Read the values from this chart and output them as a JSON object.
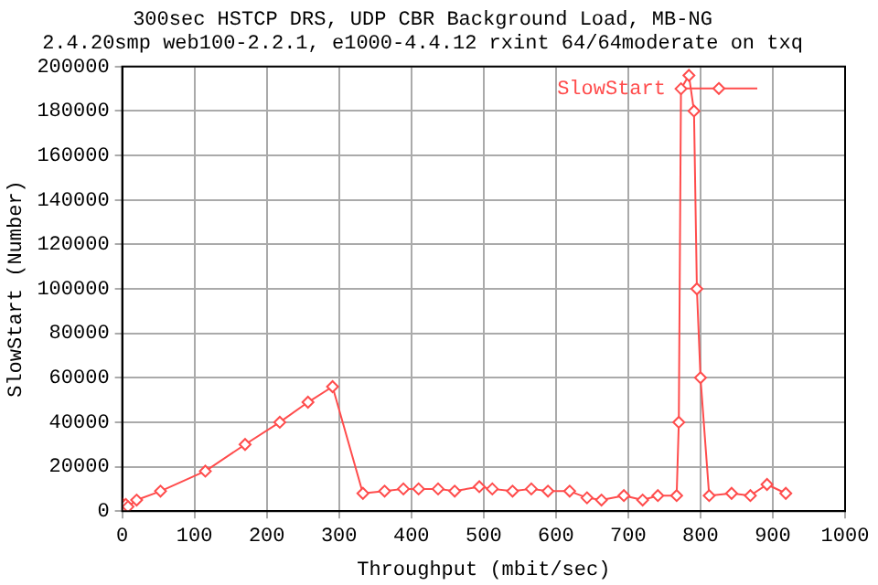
{
  "chart_data": {
    "type": "line",
    "title": [
      "300sec HSTCP DRS, UDP CBR Background Load, MB-NG",
      "2.4.20smp web100-2.2.1, e1000-4.4.12 rxint 64/64moderate on txq"
    ],
    "xlabel": "Throughput (mbit/sec)",
    "ylabel": "SlowStart (Number)",
    "series": [
      {
        "name": "SlowStart",
        "color": "#ff4c4c",
        "x": [
          1,
          3,
          5,
          8,
          20,
          53,
          115,
          170,
          218,
          257,
          291,
          333,
          363,
          389,
          410,
          437,
          460,
          494,
          512,
          540,
          566,
          589,
          619,
          643,
          663,
          694,
          720,
          741,
          767,
          770,
          773,
          784,
          791,
          795,
          800,
          812,
          843,
          869,
          892,
          918
        ],
        "values": [
          3000,
          2000,
          3000,
          2000,
          5000,
          9000,
          18000,
          30000,
          40000,
          49000,
          56000,
          8000,
          9000,
          10000,
          10000,
          10000,
          9000,
          11000,
          10000,
          9000,
          10000,
          9000,
          9000,
          6000,
          5000,
          7000,
          5000,
          7000,
          7000,
          40000,
          190000,
          196000,
          180000,
          100000,
          60000,
          7000,
          8000,
          7000,
          12000,
          8000
        ]
      }
    ],
    "xlim": [
      0,
      1000
    ],
    "xticks": [
      0,
      100,
      200,
      300,
      400,
      500,
      600,
      700,
      800,
      900,
      1000
    ],
    "ylim": [
      0,
      200000
    ],
    "yticks": [
      0,
      20000,
      40000,
      60000,
      80000,
      100000,
      120000,
      140000,
      160000,
      180000,
      200000
    ],
    "grid": true,
    "legend": "top right",
    "marker": "diamond",
    "line_style": "solid"
  }
}
